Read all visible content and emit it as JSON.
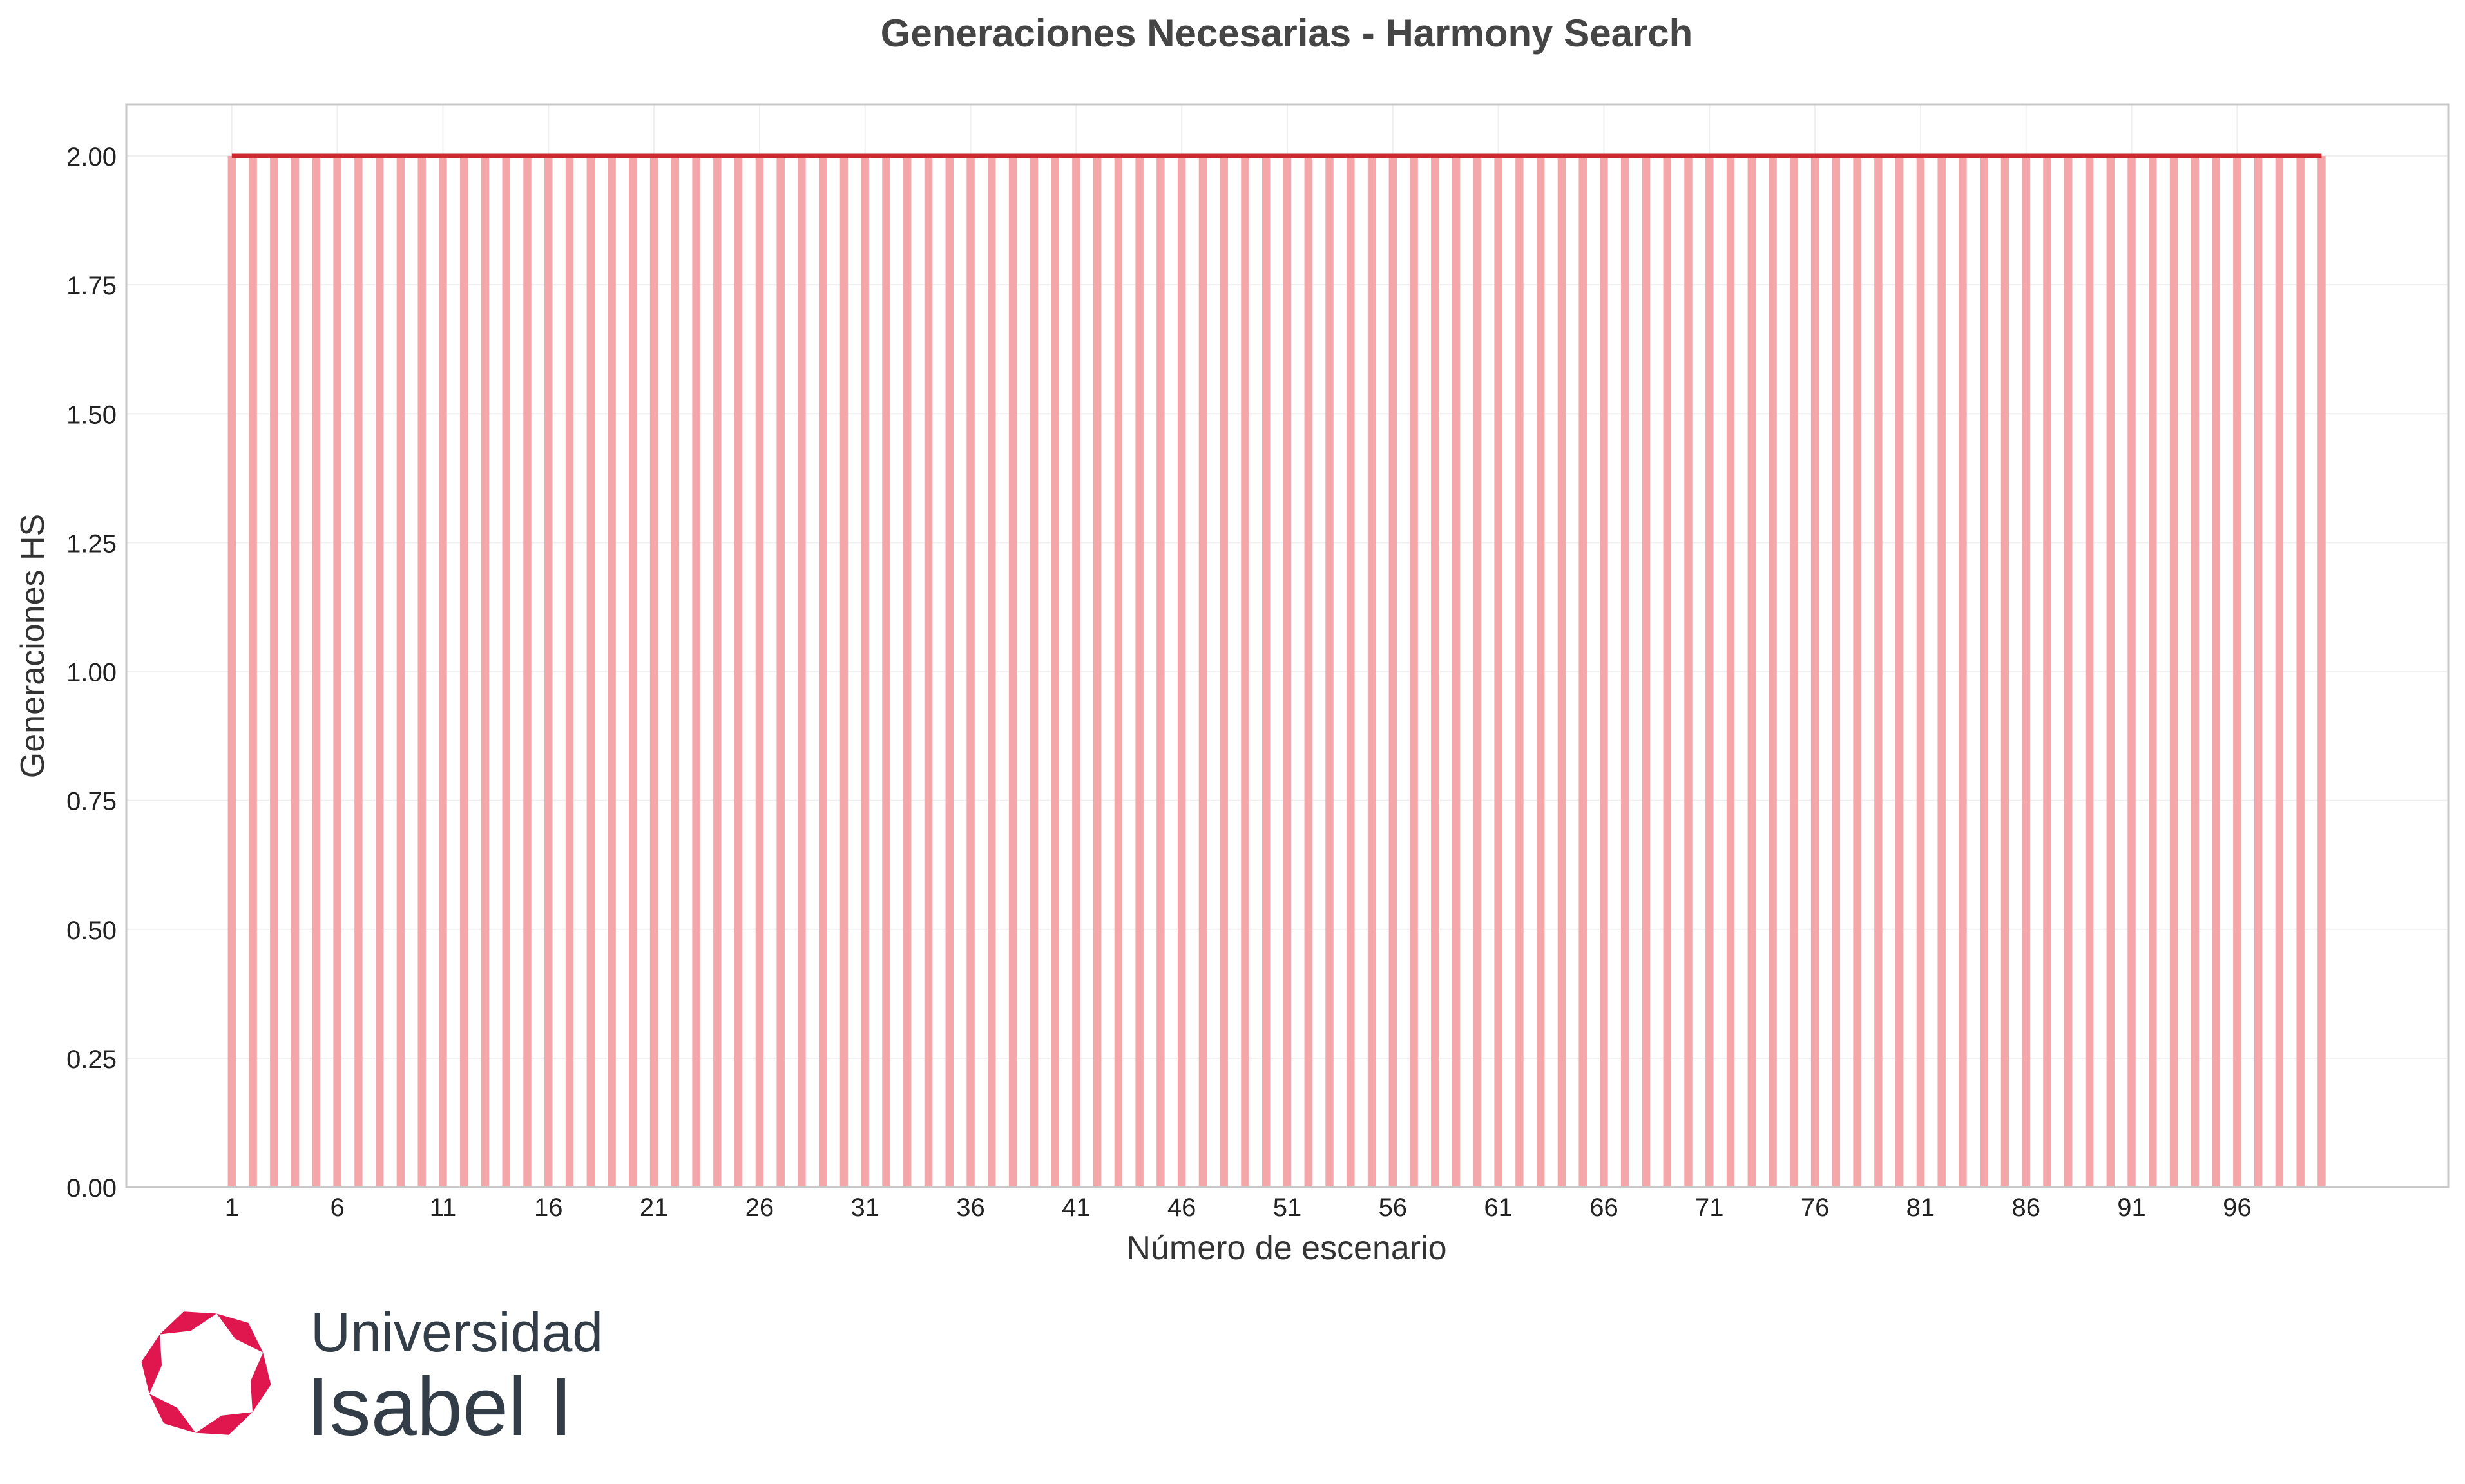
{
  "chart_data": {
    "type": "bar",
    "title": "Generaciones Necesarias - Harmony Search",
    "xlabel": "Número de escenario",
    "ylabel": "Generaciones HS",
    "x": [
      1,
      2,
      3,
      4,
      5,
      6,
      7,
      8,
      9,
      10,
      11,
      12,
      13,
      14,
      15,
      16,
      17,
      18,
      19,
      20,
      21,
      22,
      23,
      24,
      25,
      26,
      27,
      28,
      29,
      30,
      31,
      32,
      33,
      34,
      35,
      36,
      37,
      38,
      39,
      40,
      41,
      42,
      43,
      44,
      45,
      46,
      47,
      48,
      49,
      50,
      51,
      52,
      53,
      54,
      55,
      56,
      57,
      58,
      59,
      60,
      61,
      62,
      63,
      64,
      65,
      66,
      67,
      68,
      69,
      70,
      71,
      72,
      73,
      74,
      75,
      76,
      77,
      78,
      79,
      80,
      81,
      82,
      83,
      84,
      85,
      86,
      87,
      88,
      89,
      90,
      91,
      92,
      93,
      94,
      95,
      96,
      97,
      98,
      99,
      100
    ],
    "values": [
      2,
      2,
      2,
      2,
      2,
      2,
      2,
      2,
      2,
      2,
      2,
      2,
      2,
      2,
      2,
      2,
      2,
      2,
      2,
      2,
      2,
      2,
      2,
      2,
      2,
      2,
      2,
      2,
      2,
      2,
      2,
      2,
      2,
      2,
      2,
      2,
      2,
      2,
      2,
      2,
      2,
      2,
      2,
      2,
      2,
      2,
      2,
      2,
      2,
      2,
      2,
      2,
      2,
      2,
      2,
      2,
      2,
      2,
      2,
      2,
      2,
      2,
      2,
      2,
      2,
      2,
      2,
      2,
      2,
      2,
      2,
      2,
      2,
      2,
      2,
      2,
      2,
      2,
      2,
      2,
      2,
      2,
      2,
      2,
      2,
      2,
      2,
      2,
      2,
      2,
      2,
      2,
      2,
      2,
      2,
      2,
      2,
      2,
      2,
      2
    ],
    "xticks": [
      1,
      6,
      11,
      16,
      21,
      26,
      31,
      36,
      41,
      46,
      51,
      56,
      61,
      66,
      71,
      76,
      81,
      86,
      91,
      96
    ],
    "yticks": [
      "0.00",
      "0.25",
      "0.50",
      "0.75",
      "1.00",
      "1.25",
      "1.50",
      "1.75",
      "2.00"
    ],
    "ylim": [
      0,
      2.1
    ],
    "xlim": [
      -4,
      106
    ],
    "grid": true,
    "legend": "none",
    "bar_color": "#f4a6a8",
    "line_color": "#cc2a2f"
  },
  "branding": {
    "logo_line1": "Universidad",
    "logo_line2": "Isabel I",
    "logo_color": "#e0164f",
    "text_color": "#333d47"
  }
}
